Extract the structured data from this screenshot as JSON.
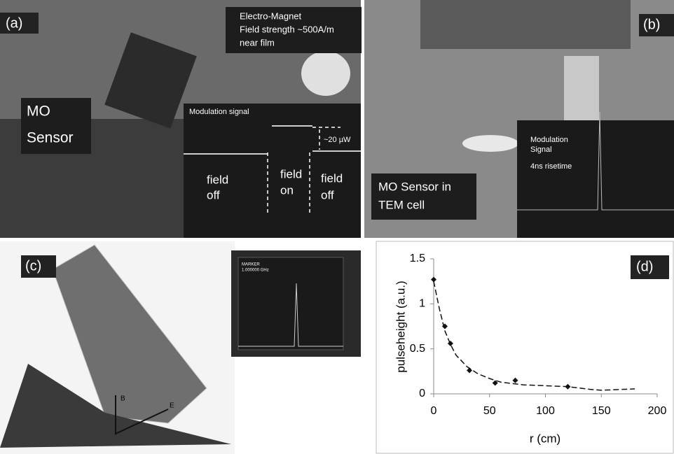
{
  "panels": {
    "a": {
      "label": "(a)",
      "magnet": [
        "Electro-Magnet",
        "Field strength ~500A/m",
        "near film"
      ],
      "sensor": [
        "MO",
        "Sensor"
      ],
      "signal": "Modulation signal",
      "power": "~20 µW",
      "states": [
        [
          "field",
          "off"
        ],
        [
          "field",
          "on"
        ],
        [
          "field",
          "off"
        ]
      ]
    },
    "b": {
      "label": "(b)",
      "signal": [
        "Modulation",
        "Signal"
      ],
      "risetime": "4ns risetime",
      "sensor": [
        "MO Sensor in",
        "TEM cell"
      ]
    },
    "c": {
      "label": "(c)",
      "b": "B",
      "e": "E",
      "marker": [
        "MARKER",
        "1.000000 GHz"
      ]
    }
  },
  "chart_data": {
    "type": "scatter",
    "label": "(d)",
    "xlabel": "r (cm)",
    "ylabel": "pulseheight (a.u.)",
    "xlim": [
      0,
      200
    ],
    "xticks": [
      0,
      50,
      100,
      150,
      200
    ],
    "ylim": [
      0,
      1.5
    ],
    "yticks": [
      0,
      0.5,
      1,
      1.5
    ],
    "series": [
      {
        "style": "marker",
        "color": "#111111",
        "x": [
          0,
          10,
          15,
          32,
          55,
          73,
          120
        ],
        "values": [
          1.27,
          0.75,
          0.56,
          0.26,
          0.12,
          0.15,
          0.08
        ]
      },
      {
        "style": "dashed",
        "color": "#111111",
        "x": [
          0,
          5,
          10,
          15,
          20,
          30,
          40,
          50,
          60,
          80,
          100,
          120,
          140,
          150,
          160,
          180
        ],
        "values": [
          1.25,
          0.95,
          0.7,
          0.55,
          0.43,
          0.3,
          0.22,
          0.17,
          0.13,
          0.1,
          0.09,
          0.08,
          0.05,
          0.04,
          0.045,
          0.055
        ]
      }
    ]
  }
}
